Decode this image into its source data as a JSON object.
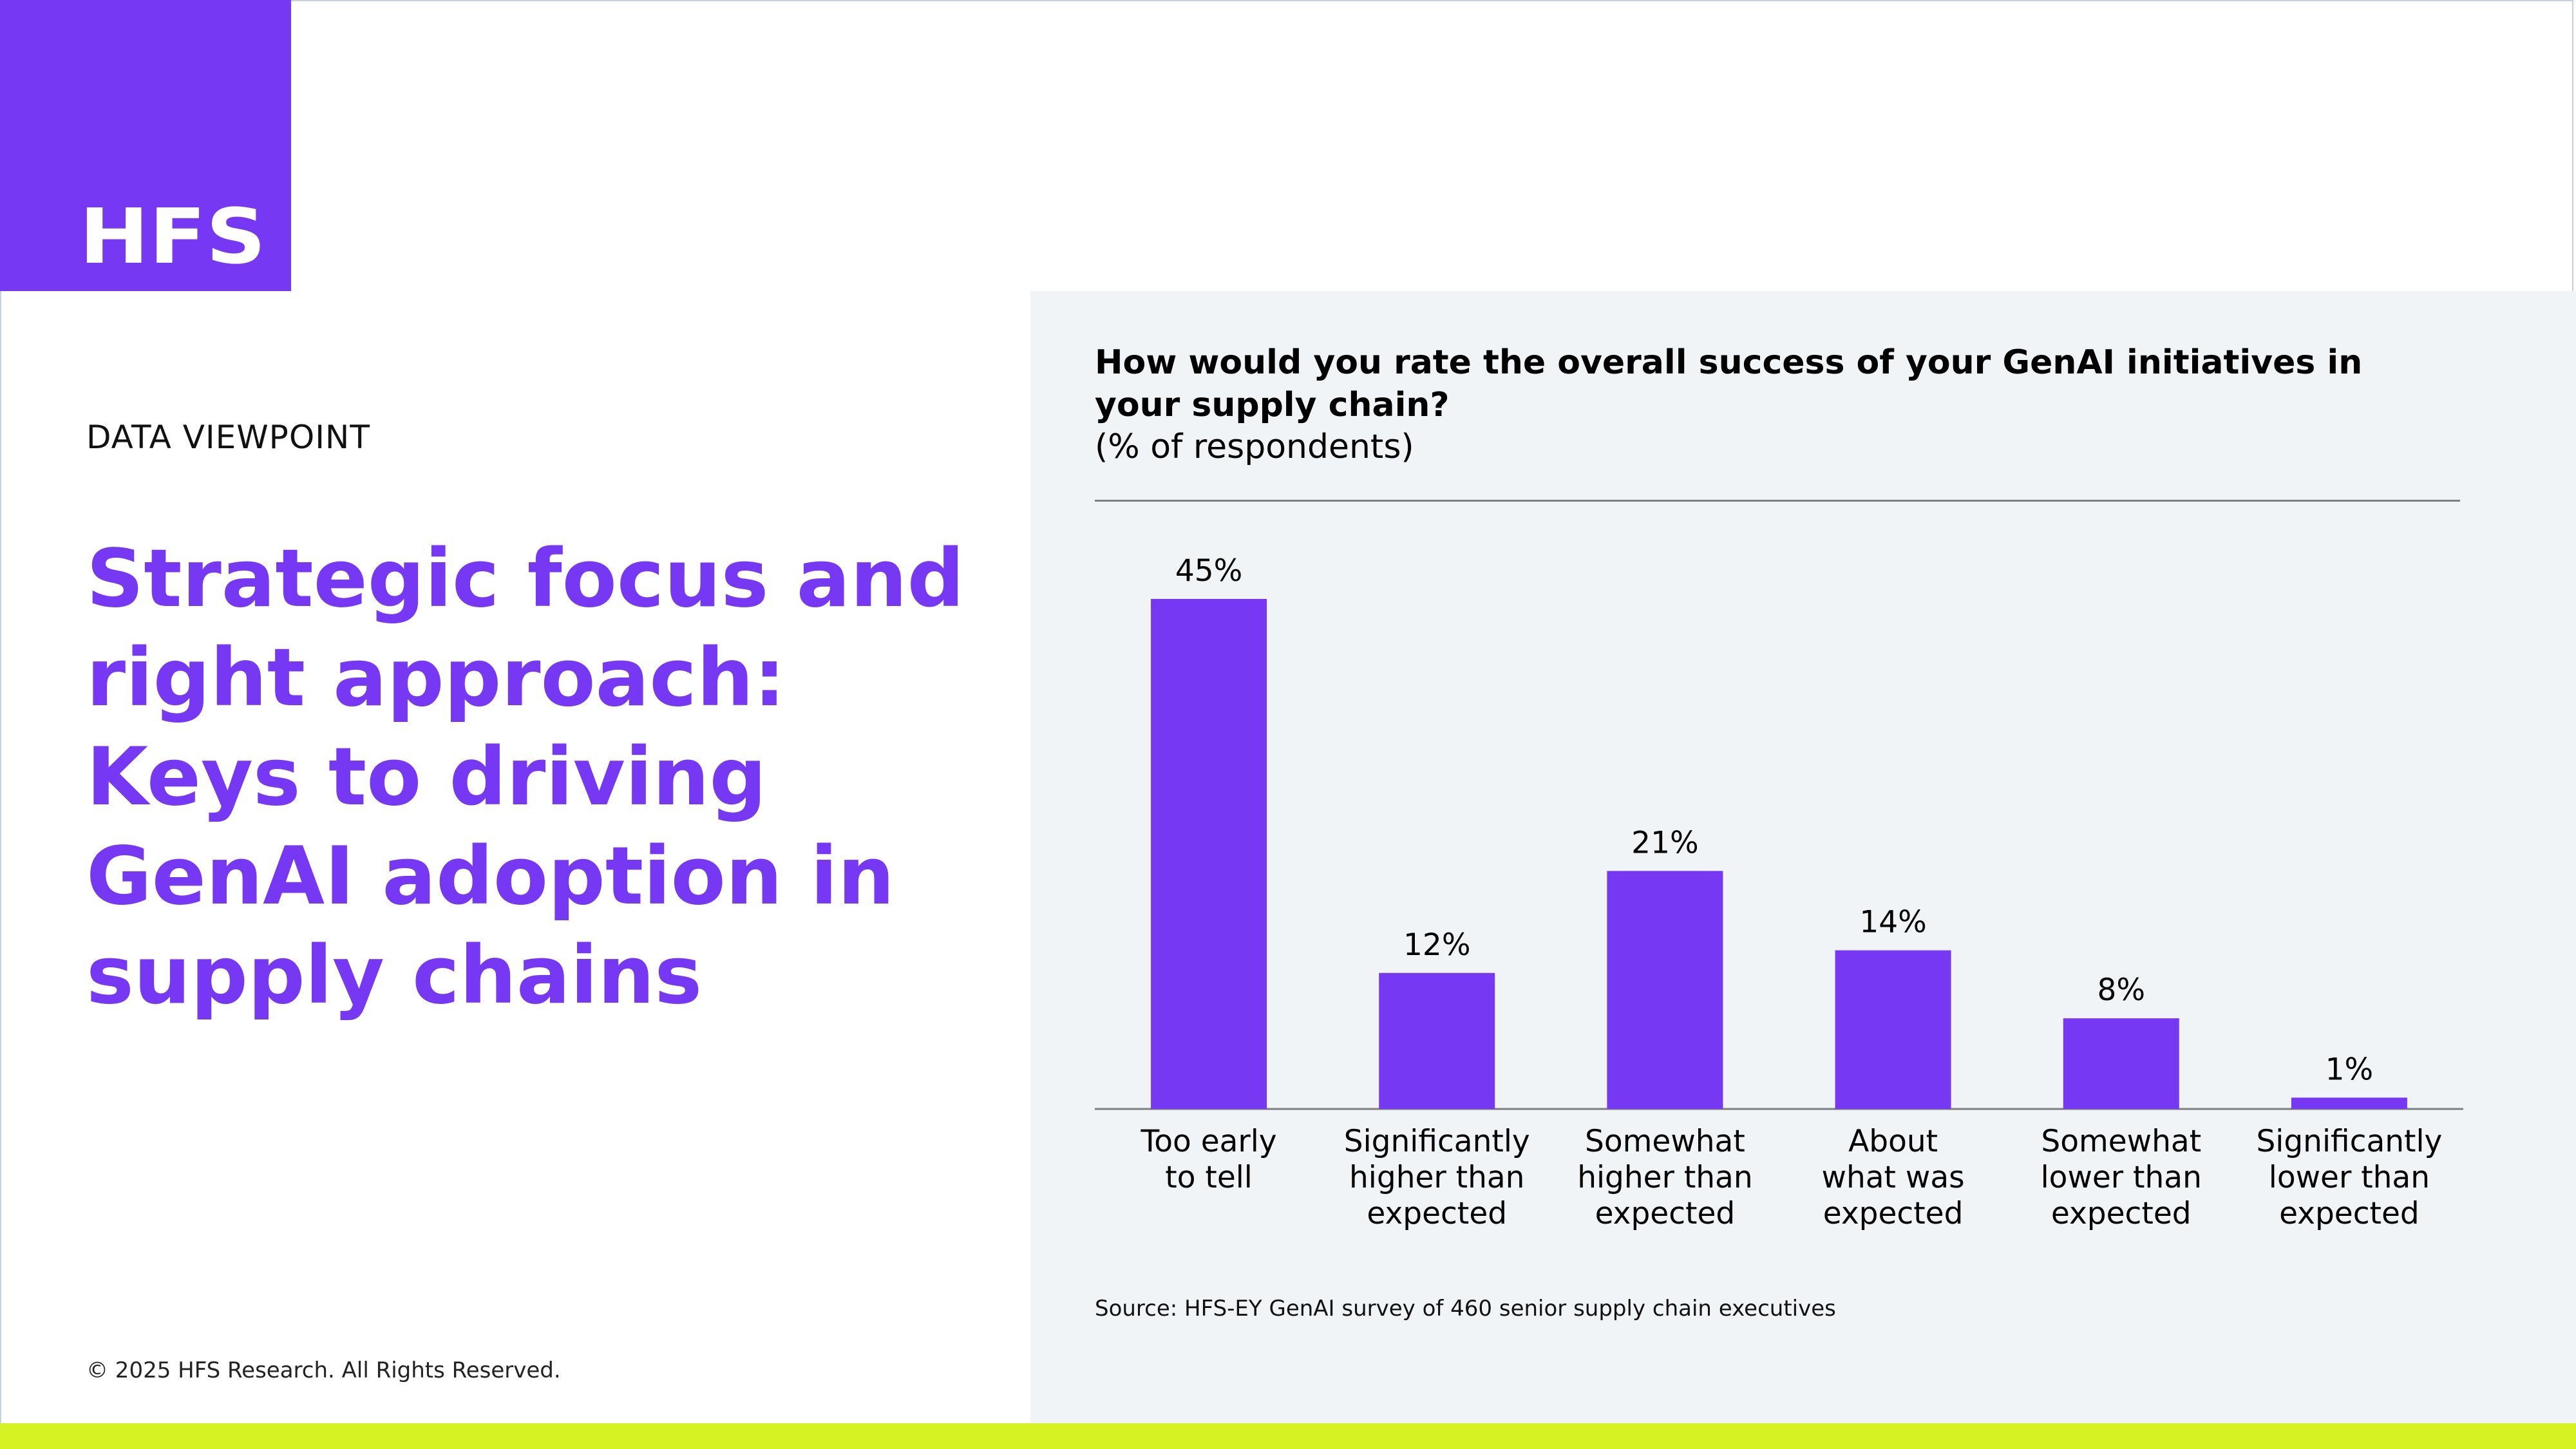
{
  "brand": {
    "logo_text": "HFS",
    "accent_color": "#7638f2",
    "band_color": "#d7f223",
    "panel_color": "#f1f4f7"
  },
  "left": {
    "kicker": "DATA VIEWPOINT",
    "headline": "Strategic focus and right approach: Keys to driving GenAI adoption in supply chains",
    "copyright": "© 2025 HFS Research. All Rights Reserved."
  },
  "chart_data": {
    "type": "bar",
    "title": "How would you rate the overall success of your GenAI initiatives in your supply chain?",
    "subtitle": "(% of respondents)",
    "categories": [
      [
        "Too early",
        "to tell"
      ],
      [
        "Significantly",
        "higher than",
        "expected"
      ],
      [
        "Somewhat",
        "higher than",
        "expected"
      ],
      [
        "About",
        "what was",
        "expected"
      ],
      [
        "Somewhat",
        "lower than",
        "expected"
      ],
      [
        "Significantly",
        "lower than",
        "expected"
      ]
    ],
    "values": [
      45,
      12,
      21,
      14,
      8,
      1
    ],
    "value_labels": [
      "45%",
      "12%",
      "21%",
      "14%",
      "8%",
      "1%"
    ],
    "ylim": [
      0,
      45
    ],
    "grid": false,
    "legend": "none",
    "bar_color": "#7638f2",
    "source": "Source: HFS-EY GenAI survey of 460 senior supply chain executives"
  }
}
